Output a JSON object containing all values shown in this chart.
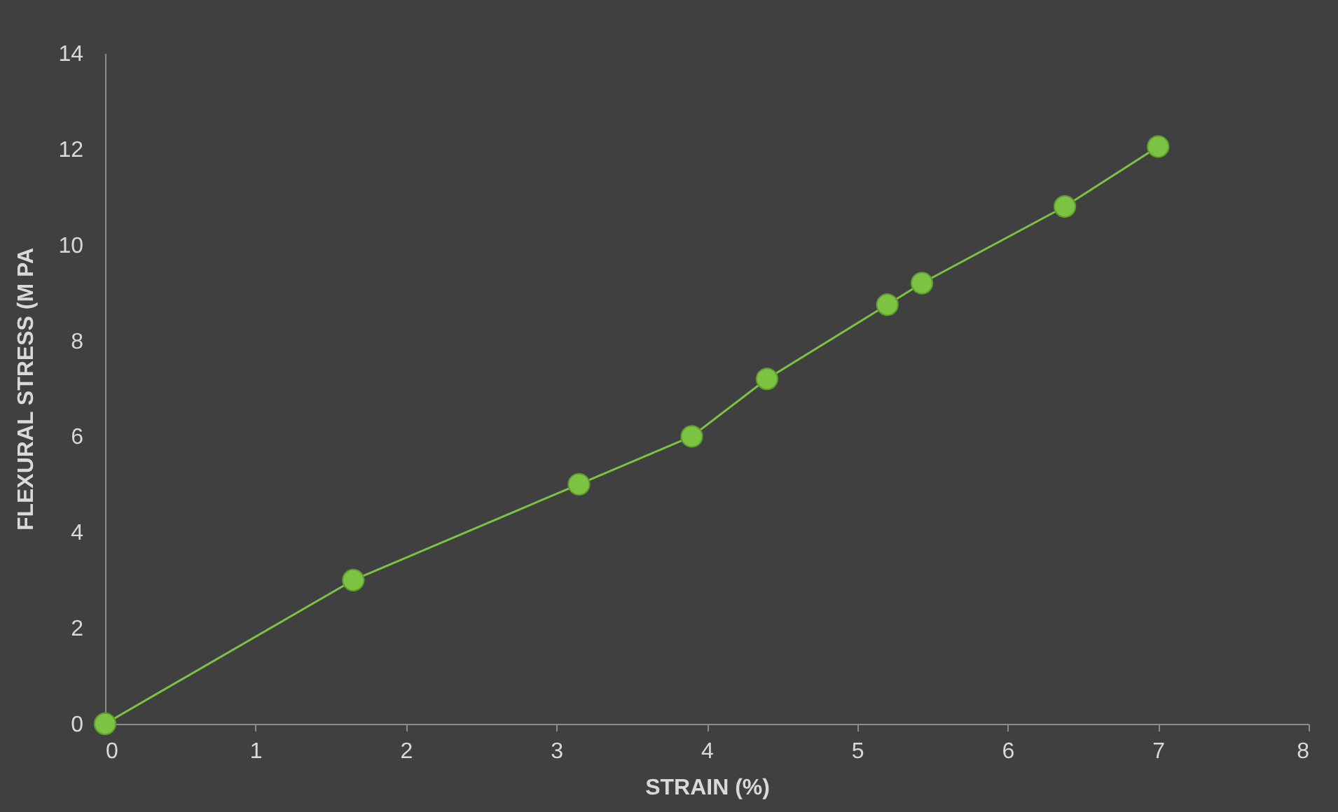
{
  "chart_data": {
    "type": "line",
    "xlabel": "STRAIN (%)",
    "ylabel": "FLEXURAL STRESS (M PA",
    "x": [
      0,
      1.65,
      3.15,
      3.9,
      4.4,
      5.2,
      5.43,
      6.38,
      7.0
    ],
    "series": [
      {
        "color": "#7cc243",
        "values": [
          0,
          3.0,
          5.0,
          6.0,
          7.2,
          8.75,
          9.2,
          10.8,
          12.05
        ]
      }
    ],
    "xlim": [
      0,
      8
    ],
    "xticks": [
      0,
      1,
      2,
      3,
      4,
      5,
      6,
      7,
      8
    ],
    "ylim": [
      0,
      14
    ],
    "yticks": [
      0,
      2,
      4,
      6,
      8,
      10,
      12,
      14
    ],
    "grid": false,
    "legend": false,
    "marker": "circle",
    "line_style": "solid"
  }
}
